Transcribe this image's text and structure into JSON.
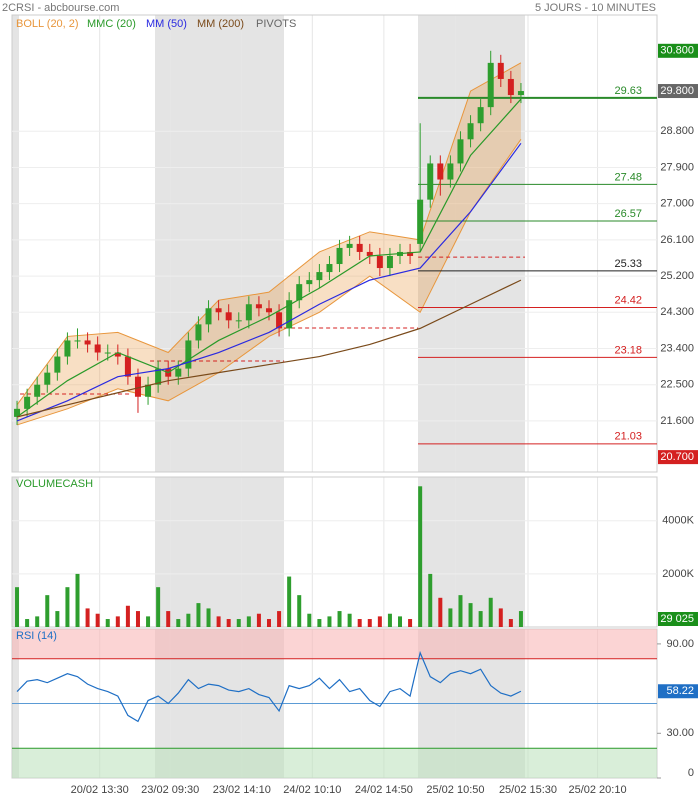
{
  "header": {
    "symbol": "2CRSI - abcbourse.com",
    "period": "5 JOURS - 10 MINUTES"
  },
  "chart_data": [
    {
      "type": "candlestick",
      "xlim": [
        -0.5,
        63.5
      ],
      "ylim": [
        20.33,
        31.69
      ],
      "xticks": [
        {
          "value": 8.2,
          "label": "20/02 13:30"
        },
        {
          "value": 15.2,
          "label": "23/02 09:30"
        },
        {
          "value": 22.3,
          "label": "23/02 14:10"
        },
        {
          "value": 29.3,
          "label": "24/02 10:10"
        },
        {
          "value": 36.4,
          "label": "24/02 14:50"
        },
        {
          "value": 43.5,
          "label": "25/02 10:50"
        },
        {
          "value": 50.7,
          "label": "25/02 15:30"
        },
        {
          "value": 57.6,
          "label": "25/02 20:10"
        }
      ],
      "yticks": [
        {
          "value": 28.8,
          "label": "28.800"
        },
        {
          "value": 27.9,
          "label": "27.900"
        },
        {
          "value": 27.0,
          "label": "27.000"
        },
        {
          "value": 26.1,
          "label": "26.100"
        },
        {
          "value": 25.2,
          "label": "25.200"
        },
        {
          "value": 24.3,
          "label": "24.300"
        },
        {
          "value": 23.4,
          "label": "23.400"
        },
        {
          "value": 22.5,
          "label": "22.500"
        },
        {
          "value": 21.6,
          "label": "21.600"
        }
      ],
      "price_markers": [
        {
          "value": 30.8,
          "label": "30.800",
          "color": "#1a8f1a"
        },
        {
          "value": 29.8,
          "label": "29.800",
          "color": "#666666"
        },
        {
          "value": 20.7,
          "label": "20.700",
          "color": "#d42020"
        }
      ],
      "up_color": "#2e9e2e",
      "down_color": "#d42020",
      "x": [
        0,
        1,
        2,
        3,
        4,
        5,
        6,
        7,
        8,
        9,
        10,
        11,
        12,
        13,
        14,
        15,
        16,
        17,
        18,
        19,
        20,
        21,
        22,
        23,
        24,
        25,
        26,
        27,
        28,
        29,
        30,
        31,
        32,
        33,
        34,
        35,
        36,
        37,
        38,
        39,
        40,
        41,
        42,
        43,
        44,
        45,
        46,
        47,
        48,
        49,
        50
      ],
      "open": [
        21.7,
        21.9,
        22.2,
        22.5,
        22.8,
        23.2,
        23.6,
        23.6,
        23.5,
        23.3,
        23.3,
        23.2,
        22.7,
        22.2,
        22.5,
        22.9,
        22.7,
        22.9,
        23.6,
        24.0,
        24.4,
        24.3,
        24.1,
        24.1,
        24.5,
        24.4,
        24.3,
        23.9,
        24.6,
        25.0,
        25.1,
        25.3,
        25.5,
        25.9,
        26.0,
        25.8,
        25.7,
        25.4,
        25.7,
        25.8,
        26.0,
        27.1,
        28.0,
        27.6,
        28.0,
        28.6,
        29.0,
        29.4,
        30.5,
        30.1,
        29.7
      ],
      "high": [
        22.1,
        22.4,
        22.7,
        23.0,
        23.4,
        23.8,
        23.9,
        23.8,
        23.7,
        23.5,
        23.5,
        23.4,
        22.9,
        22.7,
        23.1,
        23.1,
        23.1,
        23.8,
        24.2,
        24.6,
        24.6,
        24.5,
        24.3,
        24.7,
        24.7,
        24.6,
        24.5,
        24.8,
        25.2,
        25.3,
        25.5,
        25.7,
        26.1,
        26.2,
        26.2,
        26.0,
        25.9,
        25.9,
        26.0,
        26.0,
        29.0,
        28.2,
        28.2,
        28.2,
        28.8,
        29.2,
        29.6,
        30.8,
        30.7,
        30.3,
        30.0
      ],
      "low": [
        21.5,
        21.7,
        22.0,
        22.3,
        22.6,
        23.0,
        23.4,
        23.3,
        23.1,
        23.1,
        23.0,
        22.5,
        21.8,
        22.0,
        22.3,
        22.5,
        22.5,
        22.7,
        23.4,
        23.8,
        24.1,
        23.9,
        23.9,
        23.9,
        24.2,
        24.1,
        23.7,
        23.7,
        24.4,
        24.8,
        24.9,
        25.1,
        25.3,
        25.7,
        25.6,
        25.5,
        25.2,
        25.2,
        25.5,
        25.5,
        25.8,
        26.9,
        27.2,
        27.4,
        27.8,
        28.4,
        28.8,
        29.2,
        29.9,
        29.5,
        29.5
      ],
      "close": [
        21.9,
        22.2,
        22.5,
        22.8,
        23.2,
        23.6,
        23.6,
        23.5,
        23.3,
        23.3,
        23.2,
        22.7,
        22.2,
        22.5,
        22.9,
        22.7,
        22.9,
        23.6,
        24.0,
        24.4,
        24.3,
        24.1,
        24.1,
        24.5,
        24.4,
        24.3,
        23.9,
        24.6,
        25.0,
        25.1,
        25.3,
        25.5,
        25.9,
        26.0,
        25.8,
        25.7,
        25.4,
        25.7,
        25.8,
        25.7,
        27.1,
        28.0,
        27.6,
        28.0,
        28.6,
        29.0,
        29.4,
        30.5,
        30.1,
        29.7,
        29.8
      ],
      "bands": [
        {
          "name": "BOLL (20, 2)",
          "color": "#e8963c",
          "x": [
            0,
            5,
            10,
            15,
            20,
            25,
            30,
            35,
            40,
            45,
            50
          ],
          "upper": [
            22.0,
            23.7,
            23.8,
            23.3,
            24.6,
            24.8,
            25.8,
            26.3,
            26.1,
            29.8,
            30.5
          ],
          "lower": [
            21.5,
            21.9,
            22.4,
            22.1,
            22.8,
            23.7,
            24.3,
            25.2,
            24.3,
            26.8,
            28.6
          ]
        }
      ],
      "series": [
        {
          "name": "MMC (20)",
          "color": "#2a9a2a",
          "x": [
            0,
            5,
            10,
            15,
            20,
            25,
            30,
            35,
            40,
            45,
            50
          ],
          "values": [
            21.7,
            22.6,
            23.3,
            22.8,
            23.6,
            24.2,
            24.9,
            25.7,
            25.8,
            28.2,
            29.6
          ]
        },
        {
          "name": "MM (50)",
          "color": "#2a2ae0",
          "x": [
            0,
            5,
            10,
            15,
            20,
            25,
            30,
            35,
            40,
            45,
            50
          ],
          "values": [
            21.6,
            22.1,
            22.7,
            22.9,
            23.3,
            23.8,
            24.5,
            25.1,
            25.4,
            26.8,
            28.5
          ]
        },
        {
          "name": "MM (200)",
          "color": "#7a4a1a",
          "x": [
            0,
            5,
            10,
            15,
            20,
            25,
            30,
            35,
            40,
            45,
            50
          ],
          "values": [
            21.7,
            22.0,
            22.3,
            22.6,
            22.8,
            23.0,
            23.2,
            23.5,
            23.9,
            24.5,
            25.1
          ]
        }
      ],
      "pivots": {
        "name": "PIVOTS",
        "levels": [
          29.63,
          27.48,
          26.57,
          25.33,
          24.42,
          23.18,
          21.03
        ],
        "colors": [
          "#2a8a2a",
          "#2a8a2a",
          "#2a8a2a",
          "#222222",
          "#d42020",
          "#d42020",
          "#d42020"
        ],
        "prior": [
          {
            "x": [
              0.3,
              11.2
            ],
            "value": 22.27
          },
          {
            "x": [
              13.2,
              26.5
            ],
            "value": 23.09
          },
          {
            "x": [
              26.5,
              39.8
            ],
            "value": 23.91
          },
          {
            "x": [
              39.8,
              50.4
            ],
            "value": 25.67
          }
        ]
      }
    },
    {
      "type": "bar",
      "title": "VOLUMECASH",
      "color": "#2a9a2a",
      "ylim": [
        0,
        5650000
      ],
      "yticks": [
        {
          "value": 2000000,
          "label": "2000K"
        },
        {
          "value": 4000000,
          "label": "4000K"
        }
      ],
      "values": [
        1500000,
        300000,
        400000,
        1200000,
        600000,
        1500000,
        2000000,
        700000,
        500000,
        300000,
        400000,
        800000,
        600000,
        400000,
        1500000,
        600000,
        300000,
        500000,
        900000,
        700000,
        400000,
        300000,
        300000,
        400000,
        500000,
        300000,
        600000,
        1900000,
        1200000,
        500000,
        300000,
        400000,
        600000,
        500000,
        300000,
        300000,
        400000,
        500000,
        400000,
        300000,
        5300000,
        2000000,
        1100000,
        700000,
        1200000,
        900000,
        600000,
        1100000,
        700000,
        300000,
        600000
      ],
      "last_marker": {
        "value": 29025,
        "label": "29 025",
        "color": "#1a8f1a"
      }
    },
    {
      "type": "line",
      "title": "RSI (14)",
      "color": "#1f6fc5",
      "ylim": [
        0,
        100
      ],
      "yticks": [
        {
          "value": 90,
          "label": "90.00"
        },
        {
          "value": 30,
          "label": "30.00"
        },
        0
      ],
      "overbought": 80,
      "oversold": 20,
      "midline": 50,
      "values": [
        58,
        65,
        66,
        64,
        67,
        70,
        68,
        63,
        60,
        58,
        55,
        42,
        38,
        52,
        55,
        50,
        57,
        66,
        60,
        63,
        62,
        59,
        58,
        60,
        56,
        54,
        45,
        62,
        60,
        62,
        67,
        60,
        66,
        58,
        60,
        52,
        48,
        58,
        60,
        55,
        84,
        68,
        64,
        70,
        72,
        70,
        73,
        62,
        57,
        55,
        58.22
      ]
    }
  ]
}
